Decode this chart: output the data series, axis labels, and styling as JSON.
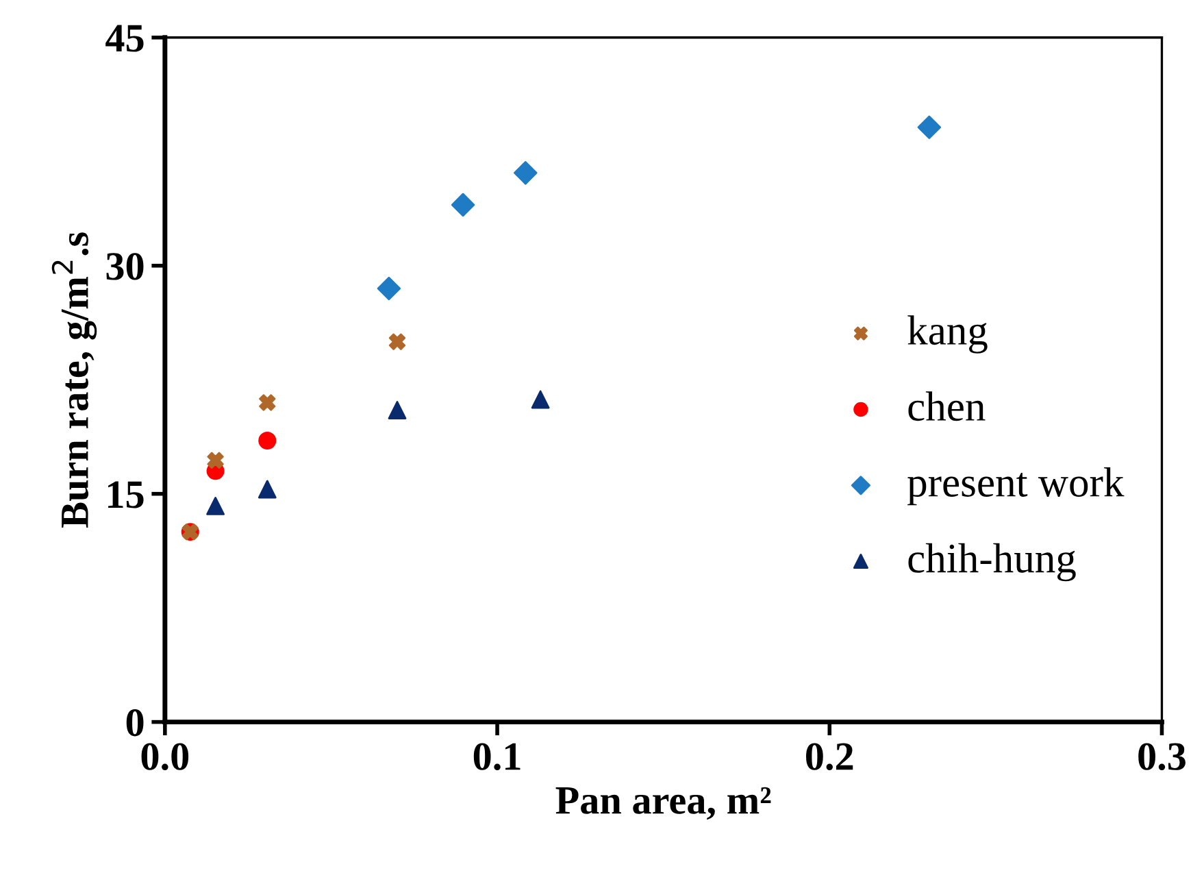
{
  "chart_data": {
    "type": "scatter",
    "xlabel": "Pan area, m²",
    "ylabel": "Burn rate, g/m$^{2}$.s",
    "xlim": [
      0,
      0.3
    ],
    "xticks": [
      {
        "value": 0,
        "label": "0.0"
      },
      0.1,
      0.2,
      0.3
    ],
    "ylim": [
      0,
      45
    ],
    "yticks": [
      0,
      15,
      30,
      45
    ],
    "grid": false,
    "legend": "right",
    "series": [
      {
        "name": "kang",
        "color": "#b0672a",
        "marker": "cross",
        "x": [
          0.0076,
          0.0152,
          0.0308,
          0.0699
        ],
        "values": [
          12.5,
          17.2,
          21.0,
          25.0
        ]
      },
      {
        "name": "chen",
        "color": "#ff0000",
        "marker": "circle",
        "x": [
          0.0076,
          0.0152,
          0.0308
        ],
        "values": [
          12.5,
          16.5,
          18.5
        ]
      },
      {
        "name": "present work",
        "color": "#1f7bc4",
        "marker": "diamond",
        "x": [
          0.0674,
          0.0897,
          0.1085,
          0.23
        ],
        "values": [
          28.5,
          34.0,
          36.1,
          39.1
        ]
      },
      {
        "name": "chih-hung",
        "color": "#0a2a6e",
        "marker": "triangle",
        "x": [
          0.0152,
          0.0308,
          0.0699,
          0.113
        ],
        "values": [
          14.2,
          15.3,
          20.5,
          21.2
        ]
      }
    ]
  }
}
